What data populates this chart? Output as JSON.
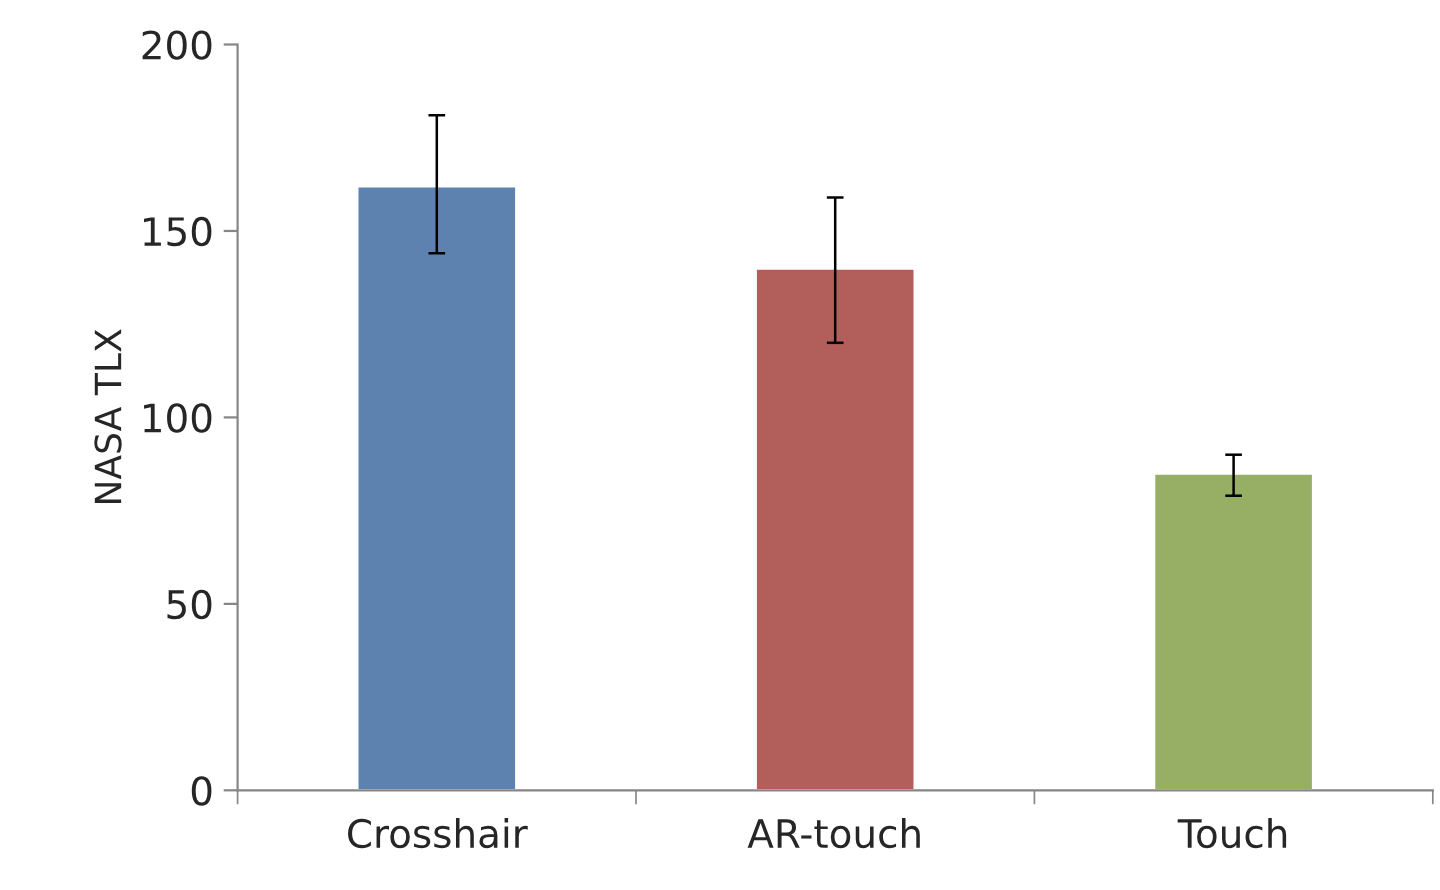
{
  "chart_data": {
    "type": "bar",
    "ylabel": "NASA TLX",
    "categories": [
      "Crosshair",
      "AR-touch",
      "Touch"
    ],
    "values": [
      162,
      140,
      85
    ],
    "colors": [
      "#4f81bd",
      "#c0504d",
      "#9bbb59"
    ],
    "errors": [
      [
        144,
        181
      ],
      [
        120,
        159
      ],
      [
        79,
        90
      ]
    ],
    "ylim": [
      0,
      200
    ],
    "yticks": [
      0,
      50,
      100,
      150,
      200
    ],
    "grid": false
  }
}
